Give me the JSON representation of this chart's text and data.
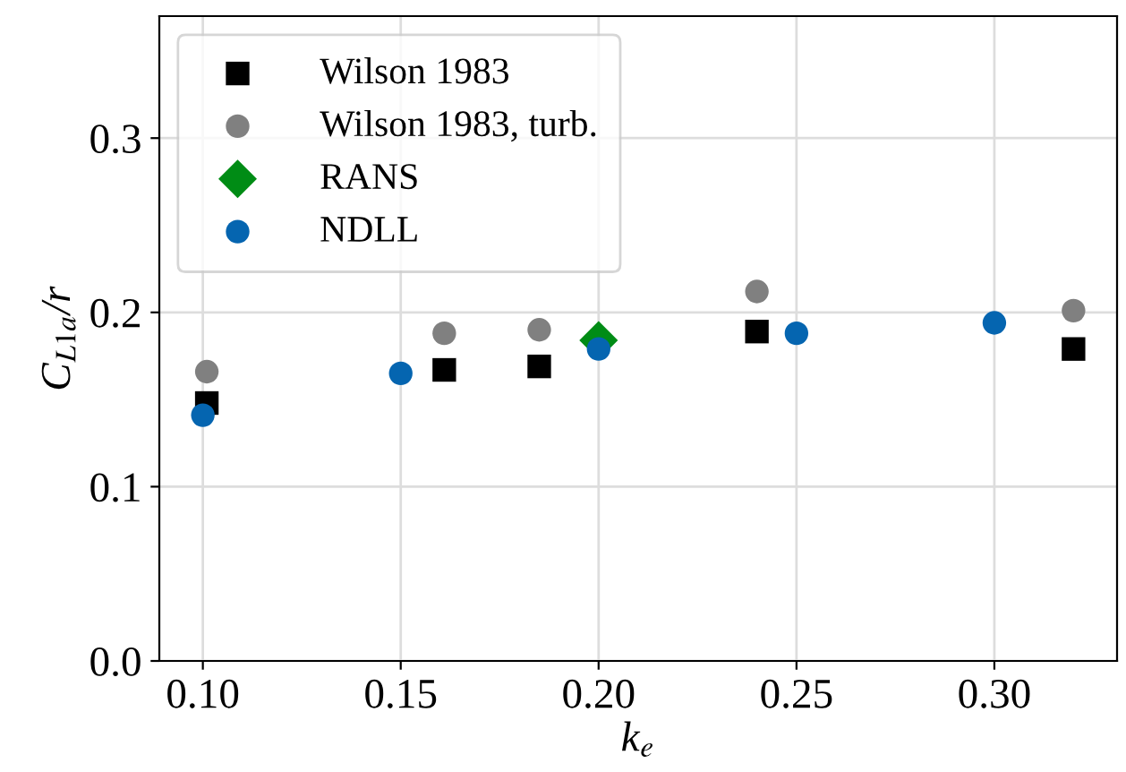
{
  "chart_data": {
    "type": "scatter",
    "xlabel": "k$_{e}$",
    "ylabel": "C$_{L1a}$/r",
    "xlim": [
      0.089,
      0.331
    ],
    "ylim": [
      0,
      0.37
    ],
    "xticks": [
      {
        "value": 0.1,
        "label": "0.10"
      },
      {
        "value": 0.15,
        "label": "0.15"
      },
      {
        "value": 0.2,
        "label": "0.20"
      },
      {
        "value": 0.25,
        "label": "0.25"
      },
      {
        "value": 0.3,
        "label": "0.30"
      }
    ],
    "yticks": [
      {
        "value": 0,
        "label": "0.0"
      },
      {
        "value": 0.1,
        "label": "0.1"
      },
      {
        "value": 0.2,
        "label": "0.2"
      },
      {
        "value": 0.3,
        "label": "0.3"
      }
    ],
    "grid": true,
    "legend": "top left",
    "series": [
      {
        "name": "Wilson 1983",
        "color": "#000000",
        "marker": "square",
        "x": [
          0.101,
          0.161,
          0.185,
          0.24,
          0.32
        ],
        "values": [
          0.148,
          0.167,
          0.169,
          0.189,
          0.179
        ]
      },
      {
        "name": "Wilson 1983, turb.",
        "color": "#808080",
        "marker": "circle",
        "x": [
          0.101,
          0.161,
          0.185,
          0.24,
          0.32
        ],
        "values": [
          0.166,
          0.188,
          0.19,
          0.212,
          0.201
        ]
      },
      {
        "name": "RANS",
        "color": "#008c15",
        "marker": "diamond",
        "x": [
          0.2
        ],
        "values": [
          0.184
        ]
      },
      {
        "name": "NDLL",
        "color": "#0565b0",
        "marker": "circle",
        "x": [
          0.1,
          0.15,
          0.2,
          0.25,
          0.3
        ],
        "values": [
          0.141,
          0.165,
          0.179,
          0.188,
          0.194
        ]
      }
    ]
  }
}
